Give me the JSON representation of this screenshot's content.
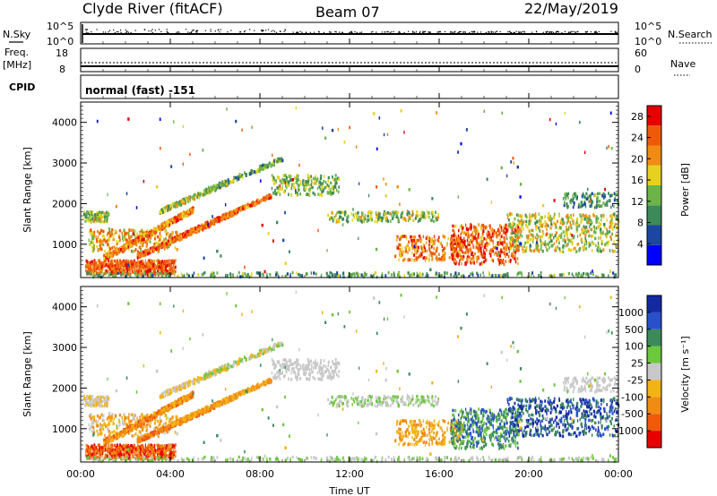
{
  "header": {
    "station": "Clyde River (fitACF)",
    "beam": "Beam 07",
    "date": "22/May/2019"
  },
  "strip1": {
    "left_label": "N.Sky",
    "right_label": "N.Search",
    "ticks_left": [
      "10^5",
      "10^0"
    ],
    "ticks_right": [
      "10^5",
      "10^0"
    ]
  },
  "strip2": {
    "left_label_1": "Freq.",
    "left_label_2": "[MHz]",
    "right_label": "Nave",
    "ticks_left": [
      "18",
      "8"
    ],
    "ticks_right": [
      "60",
      "0"
    ]
  },
  "cpid": {
    "label": "CPID",
    "text": "normal (fast) -151"
  },
  "colors": {
    "power": [
      "#0000ff",
      "#1c46a0",
      "#3c8a5a",
      "#6cb44a",
      "#e6d21e",
      "#f08c14",
      "#ee5a0a",
      "#e60000"
    ],
    "velocity_bands": [
      "#e60000",
      "#f05a0a",
      "#f08c14",
      "#f2b414",
      "#c8c8c8",
      "#6cc83c",
      "#3c8a5a",
      "#2850c8",
      "#1428a0"
    ]
  },
  "chart_data": [
    {
      "type": "heatmap",
      "panel": "power",
      "ylabel": "Slant Range [km]",
      "ylim": [
        180,
        4500
      ],
      "xlim": [
        0,
        24
      ],
      "yticks": [
        "1000",
        "2000",
        "3000",
        "4000"
      ],
      "colorbar_label": "Power [dB]",
      "colorbar_ticks": [
        "4",
        "8",
        "12",
        "16",
        "20",
        "24",
        "28"
      ],
      "colorbar_range": [
        0,
        30
      ]
    },
    {
      "type": "heatmap",
      "panel": "velocity",
      "ylabel": "Slant Range [km]",
      "ylim": [
        180,
        4500
      ],
      "xlim": [
        0,
        24
      ],
      "yticks": [
        "1000",
        "2000",
        "3000",
        "4000"
      ],
      "xticks": [
        "00:00",
        "04:00",
        "08:00",
        "12:00",
        "16:00",
        "20:00",
        "00:00"
      ],
      "xlabel": "Time UT",
      "colorbar_label": "Velocity [m s⁻¹]",
      "colorbar_ticks": [
        "-1000",
        "-500",
        "-100",
        "-25",
        "25",
        "100",
        "500",
        "1000"
      ]
    }
  ]
}
